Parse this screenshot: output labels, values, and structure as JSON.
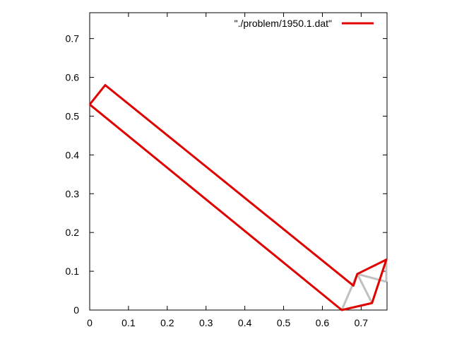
{
  "chart_data": {
    "type": "line",
    "title": "",
    "xlabel": "",
    "ylabel": "",
    "xlim": [
      0,
      0.7667
    ],
    "ylim": [
      0,
      0.7667
    ],
    "x_ticks": [
      "0",
      "0.1",
      "0.2",
      "0.3",
      "0.4",
      "0.5",
      "0.6",
      "0.7"
    ],
    "y_ticks": [
      "0",
      "0.1",
      "0.2",
      "0.3",
      "0.4",
      "0.5",
      "0.6",
      "0.7"
    ],
    "grid": false,
    "legend_position": "top-right",
    "series": [
      {
        "name": "\"./problem/1950.1.dat\"",
        "color": "#e00000",
        "points": [
          [
            0.0,
            0.53
          ],
          [
            0.04,
            0.58
          ],
          [
            0.68,
            0.063
          ],
          [
            0.69,
            0.093
          ],
          [
            0.765,
            0.13
          ],
          [
            0.728,
            0.018
          ],
          [
            0.65,
            0.0
          ],
          [
            0.0,
            0.53
          ]
        ]
      }
    ],
    "inner_lines": {
      "color": "#c0c0c0",
      "segments": [
        [
          [
            0.65,
            0.0
          ],
          [
            0.69,
            0.093
          ]
        ],
        [
          [
            0.69,
            0.093
          ],
          [
            0.728,
            0.018
          ]
        ],
        [
          [
            0.69,
            0.093
          ],
          [
            0.765,
            0.073
          ]
        ],
        [
          [
            0.765,
            0.073
          ],
          [
            0.765,
            0.13
          ]
        ]
      ]
    }
  }
}
